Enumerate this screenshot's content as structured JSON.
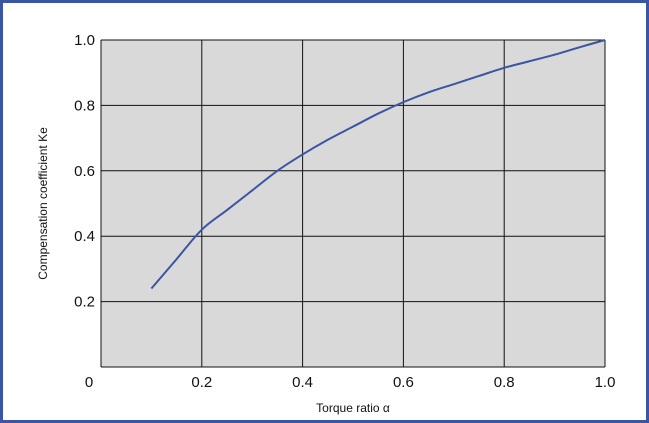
{
  "chart_data": {
    "type": "line",
    "xlabel": "Torque ratio  α",
    "ylabel": "Compensation coefficient  Ke",
    "xlim": [
      0,
      1.0
    ],
    "ylim": [
      0,
      1.0
    ],
    "x_ticks": [
      "0",
      "0.2",
      "0.4",
      "0.6",
      "0.8",
      "1.0"
    ],
    "y_ticks": [
      "0.2",
      "0.4",
      "0.6",
      "0.8",
      "1.0"
    ],
    "grid": true,
    "plot_background": "#d9d9d9",
    "line_color": "#3a55a4",
    "frame_color": "#3a55a4",
    "series": [
      {
        "x": [
          0.1,
          0.15,
          0.2,
          0.25,
          0.3,
          0.35,
          0.4,
          0.45,
          0.5,
          0.55,
          0.6,
          0.65,
          0.7,
          0.75,
          0.8,
          0.85,
          0.9,
          0.95,
          1.0
        ],
        "y": [
          0.24,
          0.33,
          0.42,
          0.48,
          0.54,
          0.6,
          0.65,
          0.695,
          0.735,
          0.775,
          0.81,
          0.84,
          0.865,
          0.89,
          0.915,
          0.935,
          0.955,
          0.978,
          1.0
        ]
      }
    ]
  }
}
